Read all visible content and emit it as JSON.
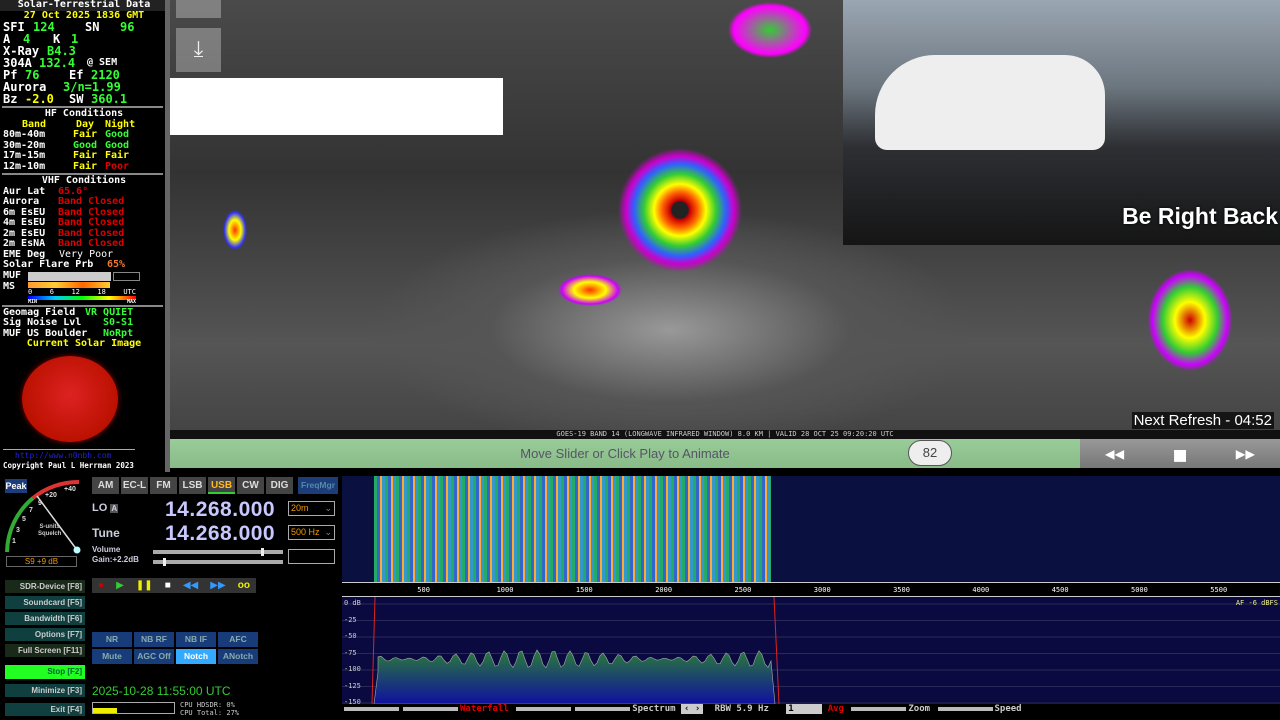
{
  "solar": {
    "title": "Solar-Terrestrial Data",
    "datetime": "27 Oct 2025 1836 GMT",
    "sfi_label": "SFI",
    "sfi": "124",
    "sn_label": "SN",
    "sn": "96",
    "a_label": "A",
    "a": "4",
    "k_label": "K",
    "k": "1",
    "xray_label": "X-Ray",
    "xray": "B4.3",
    "f304_label": "304A",
    "f304": "132.4",
    "f304_src": "@ SEM",
    "pf_label": "Pf",
    "pf": "76",
    "ef_label": "Ef",
    "ef": "2120",
    "aurora_label": "Aurora",
    "aurora": "3/n=1.99",
    "bz_label": "Bz",
    "bz": "-2.0",
    "sw_label": "SW",
    "sw": "360.1",
    "hf_title": "HF Conditions",
    "hf_headers": [
      "Band",
      "Day",
      "Night"
    ],
    "hf_rows": [
      [
        "80m-40m",
        "Fair",
        "Good"
      ],
      [
        "30m-20m",
        "Good",
        "Good"
      ],
      [
        "17m-15m",
        "Fair",
        "Fair"
      ],
      [
        "12m-10m",
        "Fair",
        "Poor"
      ]
    ],
    "vhf_title": "VHF Conditions",
    "vhf_rows": [
      [
        "Aur Lat",
        "65.6°"
      ],
      [
        "Aurora",
        "Band Closed"
      ],
      [
        "6m EsEU",
        "Band Closed"
      ],
      [
        "4m EsEU",
        "Band Closed"
      ],
      [
        "2m EsEU",
        "Band Closed"
      ],
      [
        "2m EsNA",
        "Band Closed"
      ]
    ],
    "eme_label": "EME Deg",
    "eme": "Very Poor",
    "flare_label": "Solar Flare Prb",
    "flare": "65%",
    "muf_label": "MUF",
    "ms_label": "MS",
    "scale_ticks": [
      "0",
      "6",
      "12",
      "18"
    ],
    "scale_min": "MIN",
    "scale_max": "MAX",
    "scale_utc": "UTC",
    "geomag_label": "Geomag Field",
    "geomag": "VR QUIET",
    "noise_label": "Sig Noise Lvl",
    "noise": "S0-S1",
    "mufb_label": "MUF US Boulder",
    "mufb": "NoRpt",
    "image_title": "Current Solar Image",
    "url": "http://www.n0nbh.com",
    "copyright": "Copyright Paul L Herrman 2023"
  },
  "satellite": {
    "caption": "GOES-19 BAND 14 (LONGWAVE INFRARED WINDOW) 8.0 KM | VALID 28 OCT 25 09:20:20 UTC",
    "next_refresh": "Next Refresh - 04:52",
    "animate_hint": "Move Slider or Click Play to Animate",
    "frame": "82",
    "controls": {
      "back": "◀◀",
      "stop": "■",
      "forward": "▶▶"
    }
  },
  "webcam": {
    "overlay": "Be Right Back"
  },
  "sdr": {
    "peak": "Peak",
    "meter_ticks": [
      "1",
      "3",
      "5",
      "7",
      "9",
      "+20",
      "+40"
    ],
    "meter_label": "S-units\nSquelch",
    "meter_reading": "S9 +9 dB",
    "modes": [
      "AM",
      "EC-L",
      "FM",
      "LSB",
      "USB",
      "CW",
      "DIG"
    ],
    "active_mode": "USB",
    "freqmgr": "FreqMgr",
    "lo_label": "LO",
    "lo_badge": "A",
    "lo_freq": "14.268.000",
    "band": "20m",
    "tune_label": "Tune",
    "tune_freq": "14.268.000",
    "step": "500 Hz",
    "volume_label": "Volume",
    "gain_label": "Gain:+2.2dB",
    "volume_level": 0.85,
    "fbuttons": [
      "SDR-Device [F8]",
      "Soundcard [F5]",
      "Bandwidth [F6]",
      "Options [F7]",
      "Full Screen [F11]",
      "Stop [F2]",
      "Minimize [F3]",
      "Exit [F4]"
    ],
    "dsp_row1": [
      "NR",
      "NB RF",
      "NB IF",
      "AFC"
    ],
    "dsp_row2": [
      "Mute",
      "AGC Off",
      "Notch",
      "ANotch"
    ],
    "active_dsp": "Notch",
    "datetime": "2025-10-28  11:55:00 UTC",
    "cpu_hdsdr": "CPU HDSDR: 0%",
    "cpu_total": "CPU Total: 27%",
    "freq_ticks": [
      "500",
      "1000",
      "1500",
      "2000",
      "2500",
      "3000",
      "3500",
      "4000",
      "4500",
      "5000",
      "5500"
    ],
    "db_ticks": [
      "0 dB",
      "-25",
      "-50",
      "-75",
      "-100",
      "-125",
      "-150"
    ],
    "af_level": "AF -6 dBFS",
    "bottom": {
      "waterfall": "Waterfall",
      "spectrum": "Spectrum",
      "rbw": "RBW  5.9 Hz",
      "avg_value": "1",
      "avg": "Avg",
      "zoom": "Zoom",
      "speed": "Speed"
    }
  }
}
